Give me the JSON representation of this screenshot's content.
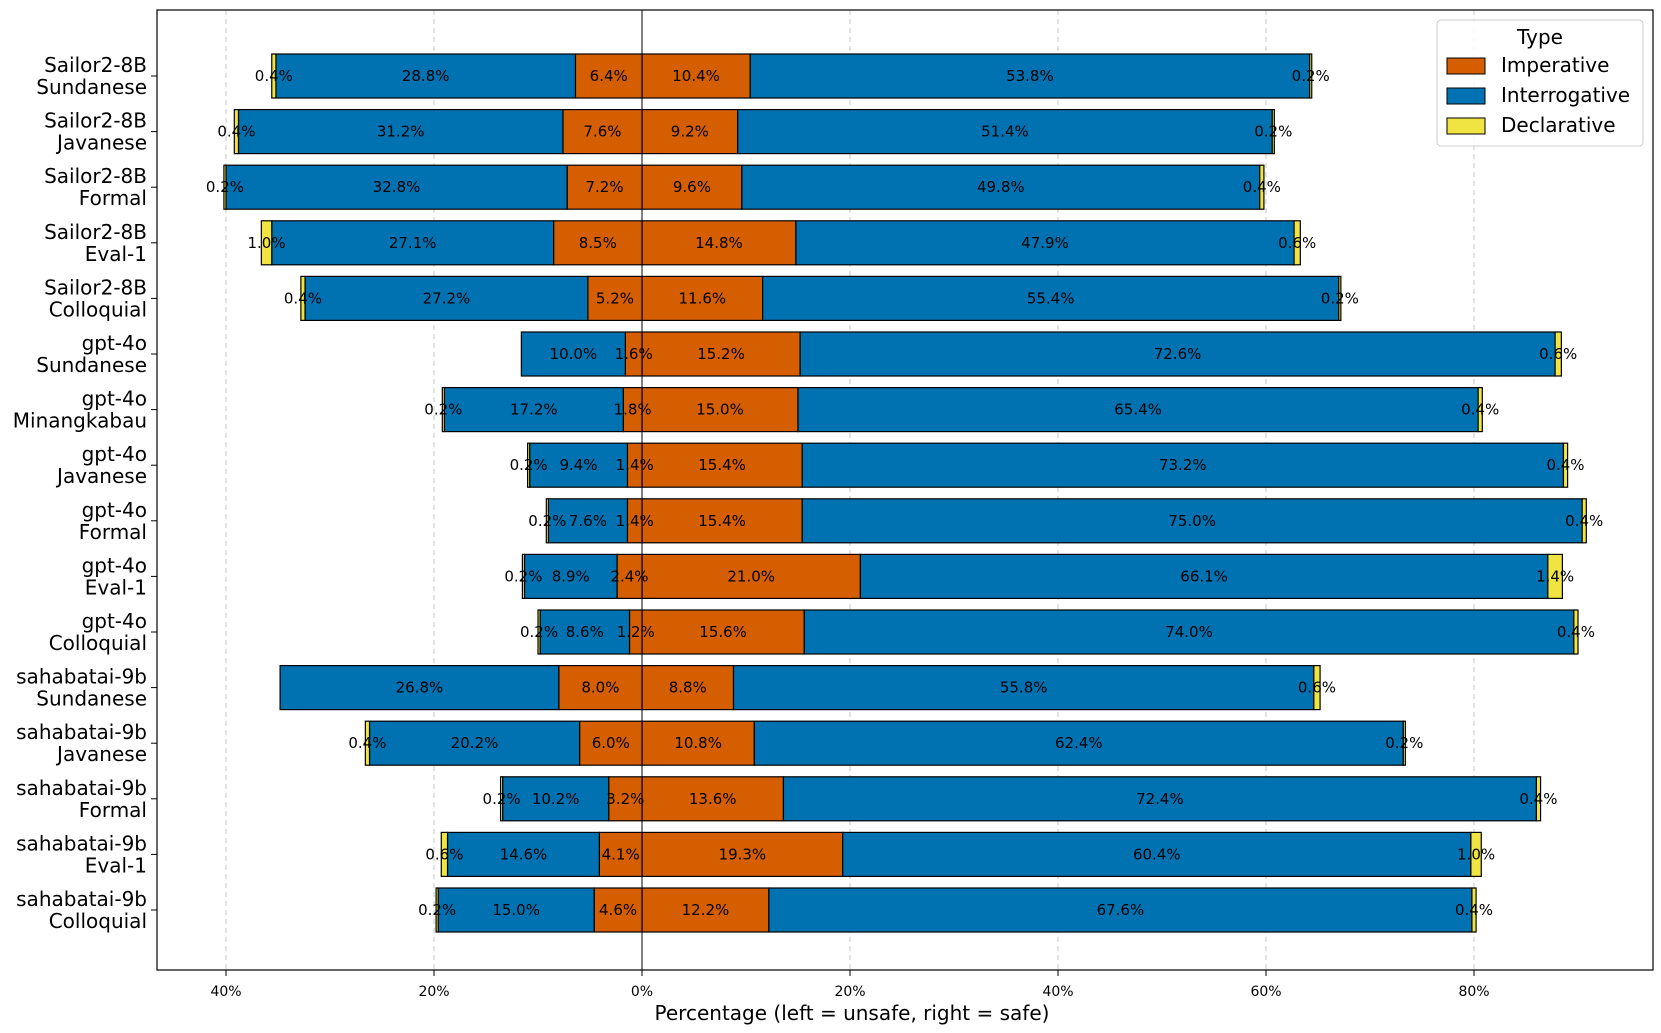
{
  "chart_data": {
    "type": "bar",
    "orientation": "horizontal-diverging",
    "title": "",
    "xlabel": "Percentage (left = unsafe, right = safe)",
    "ylabel": "",
    "xlim": [
      -46,
      96
    ],
    "x_ticks": [
      {
        "value": -40,
        "label": "40%"
      },
      {
        "value": -20,
        "label": "20%"
      },
      {
        "value": 0,
        "label": "0%"
      },
      {
        "value": 20,
        "label": "20%"
      },
      {
        "value": 40,
        "label": "40%"
      },
      {
        "value": 60,
        "label": "60%"
      },
      {
        "value": 80,
        "label": "80%"
      }
    ],
    "grid": "vertical dashed",
    "legend": {
      "title": "Type",
      "position": "top-right",
      "entries": [
        {
          "name": "Imperative",
          "color": "#D55E00"
        },
        {
          "name": "Interrogative",
          "color": "#0072B2"
        },
        {
          "name": "Declarative",
          "color": "#F0E442"
        }
      ]
    },
    "stack_order": [
      "Imperative",
      "Interrogative",
      "Declarative"
    ],
    "colors": {
      "Imperative": "#D55E00",
      "Interrogative": "#0072B2",
      "Declarative": "#F0E442"
    },
    "rows": [
      {
        "model": "Sailor2-8B",
        "variant": "Sundanese",
        "unsafe": {
          "Imperative": 6.4,
          "Interrogative": 28.8,
          "Declarative": 0.4
        },
        "safe": {
          "Imperative": 10.4,
          "Interrogative": 53.8,
          "Declarative": 0.2
        }
      },
      {
        "model": "Sailor2-8B",
        "variant": "Javanese",
        "unsafe": {
          "Imperative": 7.6,
          "Interrogative": 31.2,
          "Declarative": 0.4
        },
        "safe": {
          "Imperative": 9.2,
          "Interrogative": 51.4,
          "Declarative": 0.2
        }
      },
      {
        "model": "Sailor2-8B",
        "variant": "Formal",
        "unsafe": {
          "Imperative": 7.2,
          "Interrogative": 32.8,
          "Declarative": 0.2
        },
        "safe": {
          "Imperative": 9.6,
          "Interrogative": 49.8,
          "Declarative": 0.4
        }
      },
      {
        "model": "Sailor2-8B",
        "variant": "Eval-1",
        "unsafe": {
          "Imperative": 8.5,
          "Interrogative": 27.1,
          "Declarative": 1.0
        },
        "safe": {
          "Imperative": 14.8,
          "Interrogative": 47.9,
          "Declarative": 0.6
        }
      },
      {
        "model": "Sailor2-8B",
        "variant": "Colloquial",
        "unsafe": {
          "Imperative": 5.2,
          "Interrogative": 27.2,
          "Declarative": 0.4
        },
        "safe": {
          "Imperative": 11.6,
          "Interrogative": 55.4,
          "Declarative": 0.2
        }
      },
      {
        "model": "gpt-4o",
        "variant": "Sundanese",
        "unsafe": {
          "Imperative": 1.6,
          "Interrogative": 10.0,
          "Declarative": 0.0
        },
        "safe": {
          "Imperative": 15.2,
          "Interrogative": 72.6,
          "Declarative": 0.6
        }
      },
      {
        "model": "gpt-4o",
        "variant": "Minangkabau",
        "unsafe": {
          "Imperative": 1.8,
          "Interrogative": 17.2,
          "Declarative": 0.2
        },
        "safe": {
          "Imperative": 15.0,
          "Interrogative": 65.4,
          "Declarative": 0.4
        }
      },
      {
        "model": "gpt-4o",
        "variant": "Javanese",
        "unsafe": {
          "Imperative": 1.4,
          "Interrogative": 9.4,
          "Declarative": 0.2
        },
        "safe": {
          "Imperative": 15.4,
          "Interrogative": 73.2,
          "Declarative": 0.4
        }
      },
      {
        "model": "gpt-4o",
        "variant": "Formal",
        "unsafe": {
          "Imperative": 1.4,
          "Interrogative": 7.6,
          "Declarative": 0.2
        },
        "safe": {
          "Imperative": 15.4,
          "Interrogative": 75.0,
          "Declarative": 0.4
        }
      },
      {
        "model": "gpt-4o",
        "variant": "Eval-1",
        "unsafe": {
          "Imperative": 2.4,
          "Interrogative": 8.9,
          "Declarative": 0.2
        },
        "safe": {
          "Imperative": 21.0,
          "Interrogative": 66.1,
          "Declarative": 1.4
        }
      },
      {
        "model": "gpt-4o",
        "variant": "Colloquial",
        "unsafe": {
          "Imperative": 1.2,
          "Interrogative": 8.6,
          "Declarative": 0.2
        },
        "safe": {
          "Imperative": 15.6,
          "Interrogative": 74.0,
          "Declarative": 0.4
        }
      },
      {
        "model": "sahabatai-9b",
        "variant": "Sundanese",
        "unsafe": {
          "Imperative": 8.0,
          "Interrogative": 26.8,
          "Declarative": 0.0
        },
        "safe": {
          "Imperative": 8.8,
          "Interrogative": 55.8,
          "Declarative": 0.6
        }
      },
      {
        "model": "sahabatai-9b",
        "variant": "Javanese",
        "unsafe": {
          "Imperative": 6.0,
          "Interrogative": 20.2,
          "Declarative": 0.4
        },
        "safe": {
          "Imperative": 10.8,
          "Interrogative": 62.4,
          "Declarative": 0.2
        }
      },
      {
        "model": "sahabatai-9b",
        "variant": "Formal",
        "unsafe": {
          "Imperative": 3.2,
          "Interrogative": 10.2,
          "Declarative": 0.2
        },
        "safe": {
          "Imperative": 13.6,
          "Interrogative": 72.4,
          "Declarative": 0.4
        }
      },
      {
        "model": "sahabatai-9b",
        "variant": "Eval-1",
        "unsafe": {
          "Imperative": 4.1,
          "Interrogative": 14.6,
          "Declarative": 0.6
        },
        "safe": {
          "Imperative": 19.3,
          "Interrogative": 60.4,
          "Declarative": 1.0
        }
      },
      {
        "model": "sahabatai-9b",
        "variant": "Colloquial",
        "unsafe": {
          "Imperative": 4.6,
          "Interrogative": 15.0,
          "Declarative": 0.2
        },
        "safe": {
          "Imperative": 12.2,
          "Interrogative": 67.6,
          "Declarative": 0.4
        }
      }
    ]
  }
}
